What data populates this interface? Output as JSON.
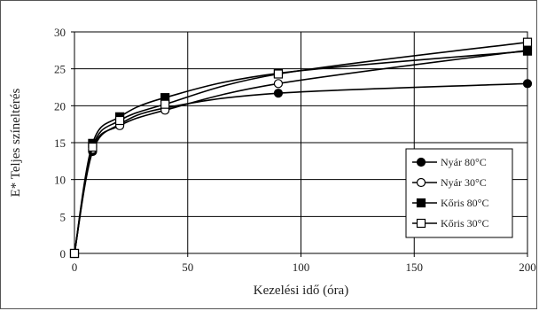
{
  "chart_data": {
    "type": "line",
    "xlabel": "Kezelési idő (óra)",
    "ylabel": "E* Teljes színeltérés",
    "xlim": [
      0,
      200
    ],
    "ylim": [
      0,
      30
    ],
    "xticks": [
      0,
      50,
      100,
      150,
      200
    ],
    "yticks": [
      0,
      5,
      10,
      15,
      20,
      25,
      30
    ],
    "grid": true,
    "legend_position": "right",
    "series": [
      {
        "name": "Nyár 80°C",
        "marker": "filled-circle",
        "x": [
          0,
          8,
          20,
          40,
          90,
          200
        ],
        "y": [
          0,
          13.8,
          17.5,
          19.7,
          21.7,
          23.0
        ]
      },
      {
        "name": "Nyár 30°C",
        "marker": "open-circle",
        "x": [
          0,
          8,
          20,
          40,
          90,
          200
        ],
        "y": [
          0,
          14.1,
          17.3,
          19.4,
          23.0,
          27.5
        ]
      },
      {
        "name": "Kőris 80°C",
        "marker": "filled-square",
        "x": [
          0,
          8,
          20,
          40,
          90,
          200
        ],
        "y": [
          0,
          14.9,
          18.5,
          21.1,
          24.4,
          27.4
        ]
      },
      {
        "name": "Kőris 30°C",
        "marker": "open-square",
        "x": [
          0,
          8,
          20,
          40,
          90,
          200
        ],
        "y": [
          0,
          14.4,
          18.0,
          20.2,
          24.3,
          28.6
        ]
      }
    ]
  }
}
